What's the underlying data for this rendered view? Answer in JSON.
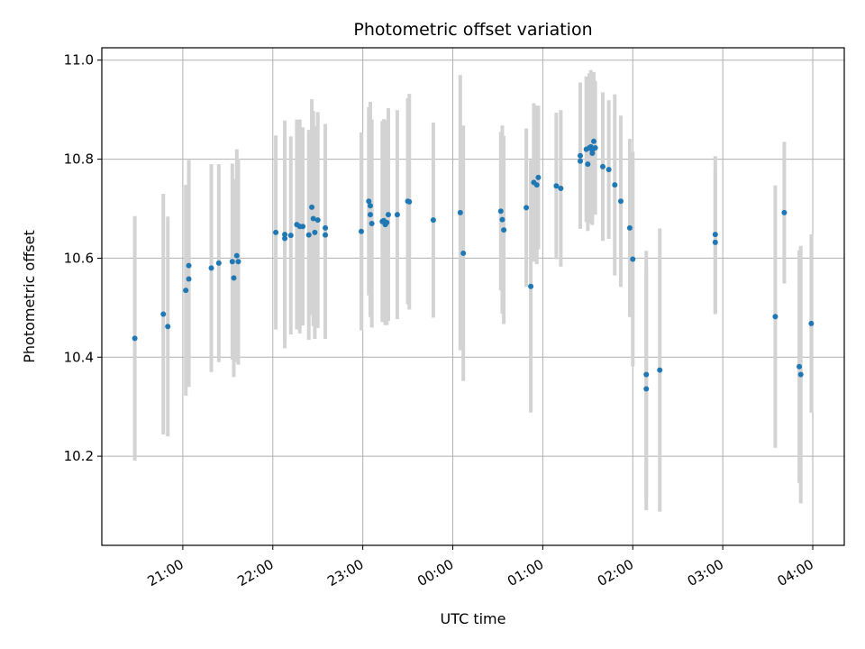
{
  "chart_data": {
    "type": "scatter",
    "title": "Photometric offset variation",
    "xlabel": "UTC time",
    "ylabel": "Photometric offset",
    "grid": true,
    "x_ticks": [
      "21:00",
      "22:00",
      "23:00",
      "00:00",
      "01:00",
      "02:00",
      "03:00",
      "04:00"
    ],
    "y_ticks": [
      "10.2",
      "10.4",
      "10.6",
      "10.8",
      "11.0"
    ],
    "x_range_hours": [
      20.1,
      28.35
    ],
    "ylim": [
      10.02,
      11.025
    ],
    "point_color": "#1f77b4",
    "errorbar_color": "#d3d3d3",
    "series": [
      {
        "x_utc": [
          "20:28",
          "20:47",
          "20:50",
          "21:02",
          "21:04",
          "21:04",
          "21:19",
          "21:24",
          "21:33",
          "21:34",
          "21:36",
          "21:37",
          "22:02",
          "22:08",
          "22:08",
          "22:12",
          "22:16",
          "22:18",
          "22:20",
          "22:24",
          "22:26",
          "22:27",
          "22:28",
          "22:30",
          "22:35",
          "22:35",
          "22:59",
          "23:04",
          "23:05",
          "23:05",
          "23:06",
          "23:13",
          "23:14",
          "23:15",
          "23:16",
          "23:17",
          "23:23",
          "23:30",
          "23:31",
          "23:47",
          "00:05",
          "00:07",
          "00:32",
          "00:33",
          "00:34",
          "00:49",
          "00:52",
          "00:54",
          "00:56",
          "00:57",
          "01:09",
          "01:12",
          "01:25",
          "01:25",
          "01:29",
          "01:30",
          "01:31",
          "01:32",
          "01:33",
          "01:33",
          "01:34",
          "01:35",
          "01:40",
          "01:44",
          "01:48",
          "01:52",
          "01:58",
          "02:00",
          "02:09",
          "02:09",
          "02:18",
          "02:55",
          "02:55",
          "03:35",
          "03:41",
          "03:51",
          "03:52",
          "03:59"
        ],
        "y": [
          10.438,
          10.487,
          10.462,
          10.535,
          10.585,
          10.558,
          10.58,
          10.59,
          10.593,
          10.56,
          10.605,
          10.593,
          10.652,
          10.648,
          10.64,
          10.646,
          10.668,
          10.664,
          10.664,
          10.647,
          10.703,
          10.68,
          10.652,
          10.677,
          10.661,
          10.647,
          10.654,
          10.715,
          10.706,
          10.688,
          10.67,
          10.674,
          10.676,
          10.668,
          10.672,
          10.688,
          10.688,
          10.715,
          10.714,
          10.677,
          10.692,
          10.61,
          10.695,
          10.678,
          10.657,
          10.702,
          10.543,
          10.753,
          10.748,
          10.763,
          10.746,
          10.741,
          10.807,
          10.796,
          10.82,
          10.79,
          10.823,
          10.825,
          10.812,
          10.818,
          10.836,
          10.823,
          10.785,
          10.779,
          10.748,
          10.715,
          10.661,
          10.598,
          10.365,
          10.336,
          10.374,
          10.648,
          10.632,
          10.482,
          10.692,
          10.381,
          10.365,
          10.468
        ],
        "yerr": [
          0.247,
          0.243,
          0.222,
          0.213,
          0.213,
          0.218,
          0.21,
          0.2,
          0.198,
          0.2,
          0.215,
          0.208,
          0.196,
          0.23,
          0.21,
          0.2,
          0.212,
          0.216,
          0.2,
          0.212,
          0.218,
          0.217,
          0.215,
          0.218,
          0.21,
          0.21,
          0.2,
          0.19,
          0.21,
          0.207,
          0.21,
          0.203,
          0.205,
          0.203,
          0.207,
          0.215,
          0.211,
          0.208,
          0.218,
          0.197,
          0.278,
          0.258,
          0.16,
          0.19,
          0.19,
          0.16,
          0.255,
          0.16,
          0.16,
          0.145,
          0.148,
          0.158,
          0.148,
          0.136,
          0.147,
          0.135,
          0.15,
          0.155,
          0.145,
          0.14,
          0.14,
          0.135,
          0.15,
          0.14,
          0.183,
          0.173,
          0.18,
          0.217,
          0.25,
          0.245,
          0.286,
          0.158,
          0.145,
          0.265,
          0.143,
          0.235,
          0.26,
          0.18
        ]
      }
    ]
  }
}
